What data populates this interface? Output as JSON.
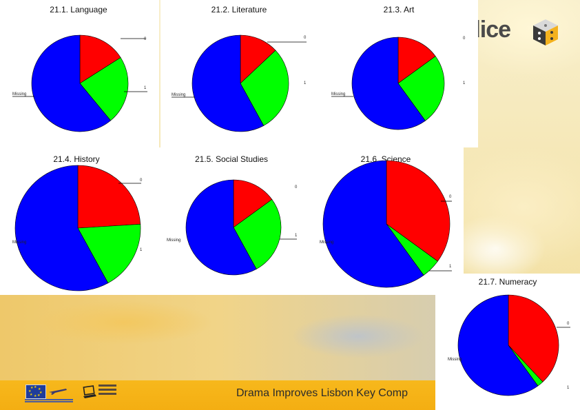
{
  "footer": {
    "title": "Drama Improves Lisbon Key Comp"
  },
  "logo": {
    "text": "dice"
  },
  "chart_data": [
    {
      "type": "pie",
      "title": "21.1. Language",
      "categories": [
        "0",
        "1",
        "Missing"
      ],
      "values": [
        16,
        23,
        61
      ],
      "colors": [
        "#ff0000",
        "#00ff00",
        "#0000ff"
      ]
    },
    {
      "type": "pie",
      "title": "21.2. Literature",
      "categories": [
        "0",
        "1",
        "Missing"
      ],
      "values": [
        13,
        29,
        58
      ],
      "colors": [
        "#ff0000",
        "#00ff00",
        "#0000ff"
      ]
    },
    {
      "type": "pie",
      "title": "21.3. Art",
      "categories": [
        "0",
        "1",
        "Missing"
      ],
      "values": [
        15,
        25,
        60
      ],
      "colors": [
        "#ff0000",
        "#00ff00",
        "#0000ff"
      ]
    },
    {
      "type": "pie",
      "title": "21.4. History",
      "categories": [
        "0",
        "1",
        "Missing"
      ],
      "values": [
        24,
        18,
        58
      ],
      "colors": [
        "#ff0000",
        "#00ff00",
        "#0000ff"
      ]
    },
    {
      "type": "pie",
      "title": "21.5. Social Studies",
      "categories": [
        "0",
        "1",
        "Missing"
      ],
      "values": [
        15,
        27,
        58
      ],
      "colors": [
        "#ff0000",
        "#00ff00",
        "#0000ff"
      ]
    },
    {
      "type": "pie",
      "title": "21.6. Science",
      "categories": [
        "0",
        "1",
        "Missing"
      ],
      "values": [
        35,
        5,
        60
      ],
      "colors": [
        "#ff0000",
        "#00ff00",
        "#0000ff"
      ]
    },
    {
      "type": "pie",
      "title": "21.7. Numeracy",
      "categories": [
        "0",
        "1",
        "Missing"
      ],
      "values": [
        38,
        2,
        60
      ],
      "colors": [
        "#ff0000",
        "#00ff00",
        "#0000ff"
      ]
    }
  ]
}
